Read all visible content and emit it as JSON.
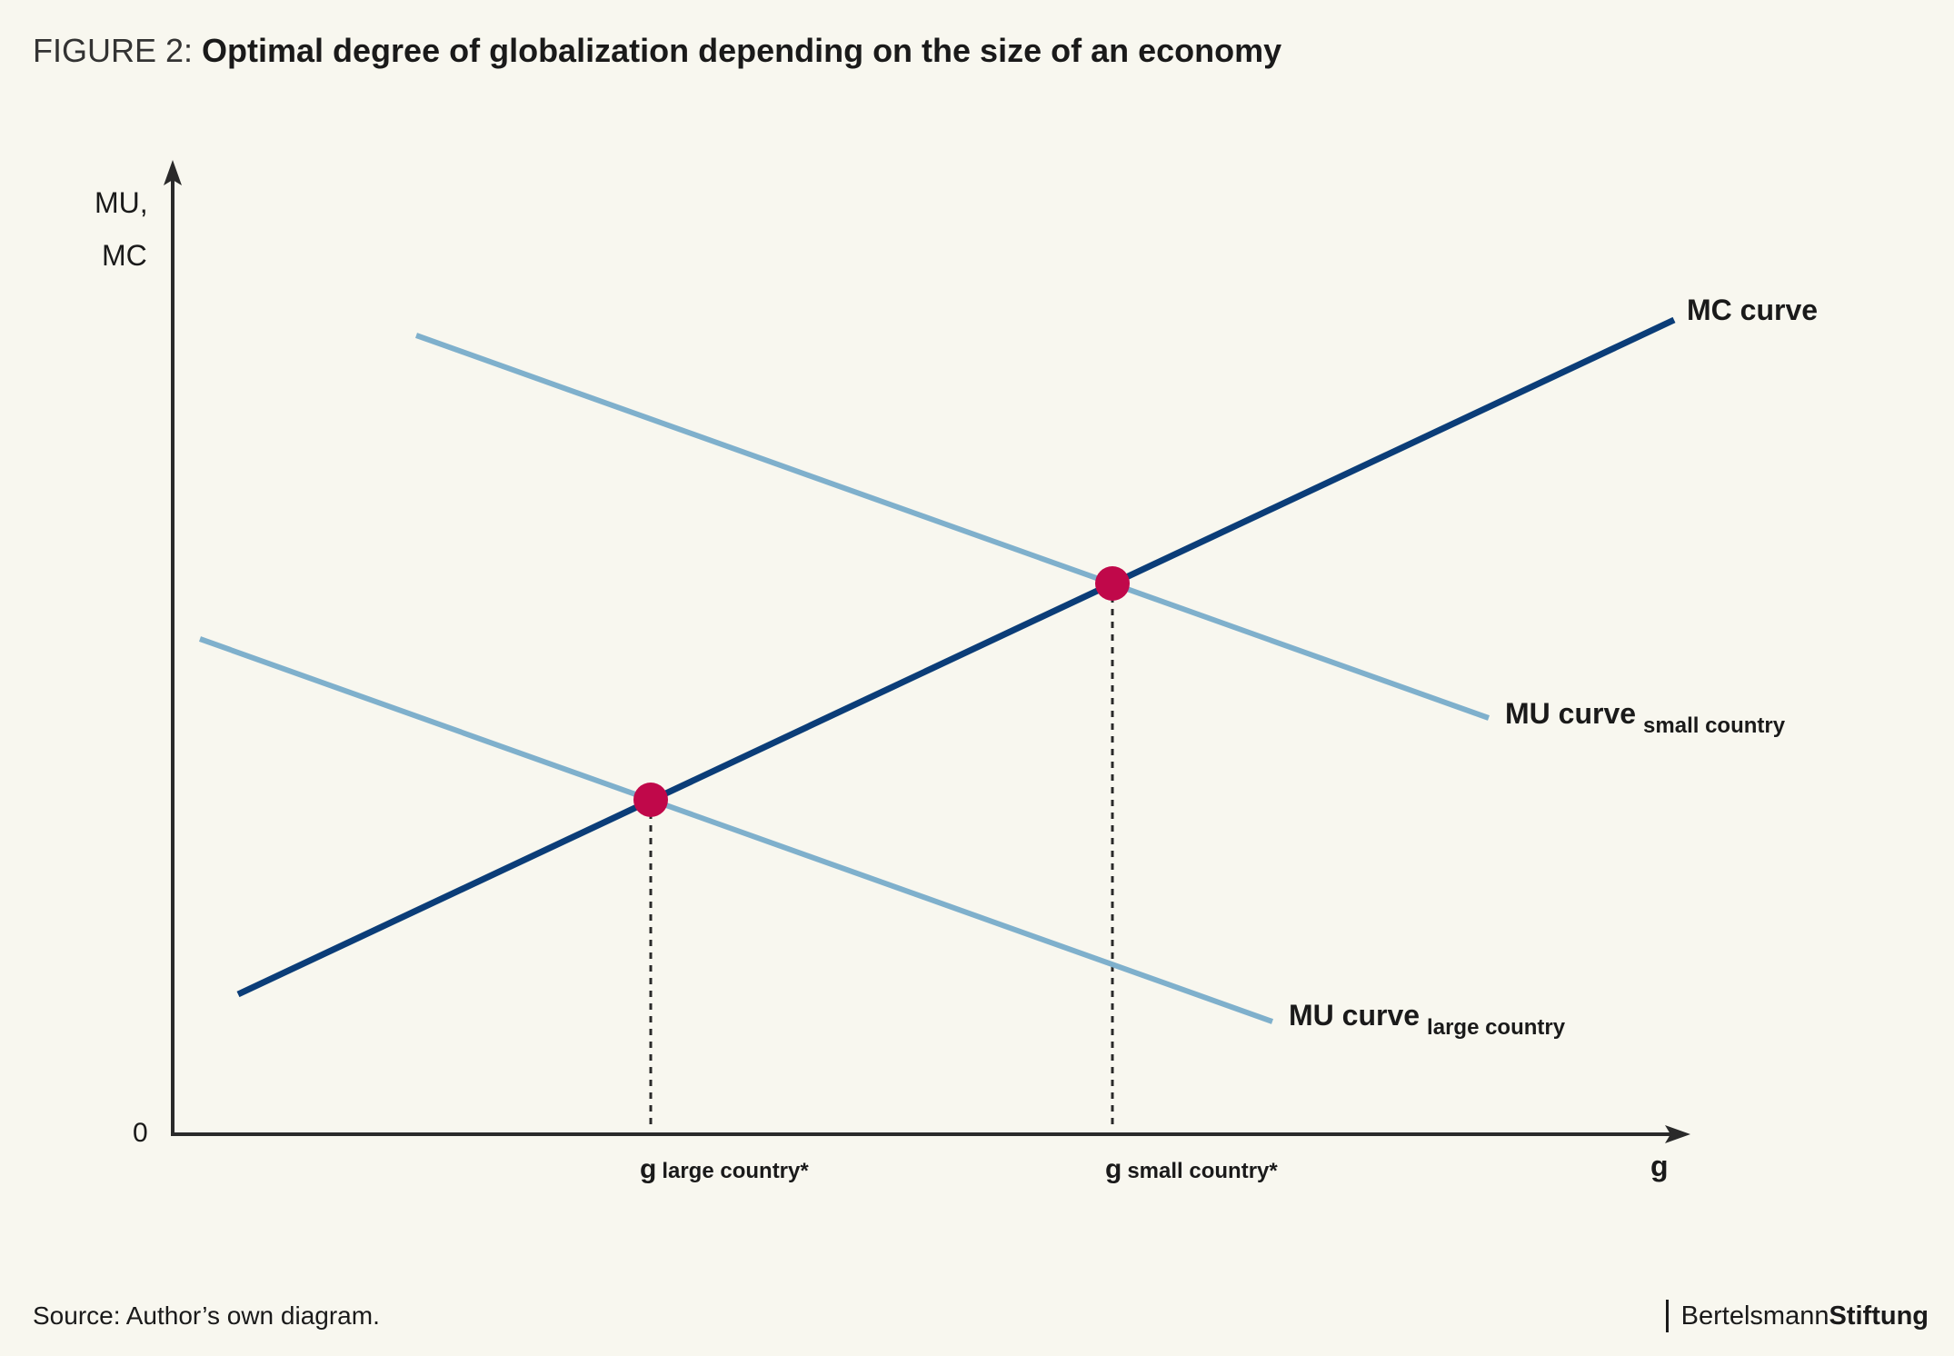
{
  "title": {
    "prefix": "FIGURE 2: ",
    "text": "Optimal degree of globalization depending on the size of an economy"
  },
  "axes": {
    "y_label_line1": "MU,",
    "y_label_line2": "MC",
    "origin_label": "0",
    "x_label": "g"
  },
  "curves": {
    "mc": {
      "label": "MC curve",
      "color": "#0b3d78"
    },
    "mu_small": {
      "label": "MU curve",
      "sub": "small country",
      "color": "#7fb0cc"
    },
    "mu_large": {
      "label": "MU curve",
      "sub": "large country",
      "color": "#7fb0cc"
    }
  },
  "optima": {
    "large": {
      "symbol": "g",
      "sub": "large country*"
    },
    "small": {
      "symbol": "g",
      "sub": "small country*"
    },
    "color": "#c0084a"
  },
  "footer": {
    "source": "Source: Author’s own diagram.",
    "brand_light": "Bertelsmann",
    "brand_bold": "Stiftung"
  }
}
